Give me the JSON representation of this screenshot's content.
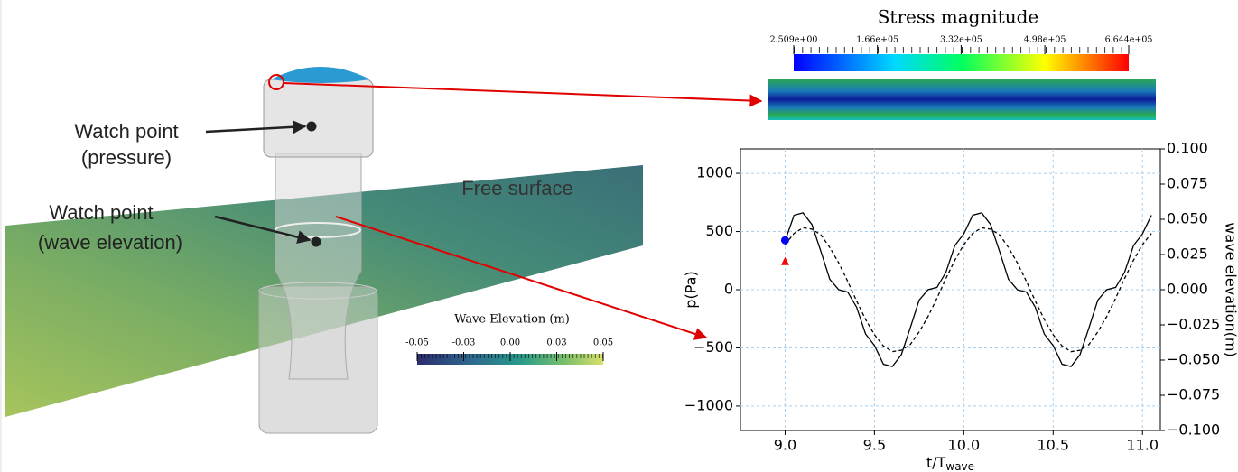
{
  "scene": {
    "pressure_label": [
      "Watch point",
      "(pressure)"
    ],
    "wave_label": [
      "Watch point",
      "(wave elevation)"
    ],
    "surface_label": "Free surface"
  },
  "wave_colorbar": {
    "title": "Wave Elevation (m)",
    "range": [
      -0.05,
      0.05
    ],
    "ticks": [
      -0.05,
      {
        "value": -0.025,
        "label": "-0.03"
      },
      {
        "value": 0,
        "label": "0.00"
      },
      {
        "value": 0.025,
        "label": "0.03"
      },
      0.05
    ]
  },
  "stress_colorbar": {
    "title": "Stress magnitude",
    "range": [
      2.509,
      664400
    ],
    "ticks": [
      {
        "value": 2.509,
        "label": "2.509e+00"
      },
      {
        "value": 166000,
        "label": "1.66e+05"
      },
      {
        "value": 332000,
        "label": "3.32e+05"
      },
      {
        "value": 498000,
        "label": "4.98e+05"
      },
      {
        "value": 664400,
        "label": "6.644e+05"
      }
    ]
  },
  "chart_data": {
    "type": "line",
    "x_label": "t/T",
    "x_label_subscript": "wave",
    "y_label": "p(Pa)",
    "y2_label": "wave elevation(m)",
    "x": [
      9.0,
      9.05,
      9.1,
      9.15,
      9.2,
      9.25,
      9.3,
      9.35,
      9.4,
      9.45,
      9.5,
      9.55,
      9.6,
      9.65,
      9.7,
      9.75,
      9.8,
      9.85,
      9.9,
      9.95,
      10.0,
      10.05,
      10.1,
      10.15,
      10.2,
      10.25,
      10.3,
      10.35,
      10.4,
      10.45,
      10.5,
      10.55,
      10.6,
      10.65,
      10.7,
      10.75,
      10.8,
      10.85,
      10.9,
      10.95,
      11.0,
      11.05
    ],
    "series": [
      {
        "color": "#000000",
        "line_style": "solid",
        "values": [
          420,
          640,
          660,
          560,
          330,
          90,
          0,
          -20,
          -150,
          -380,
          -480,
          -640,
          -660,
          -560,
          -330,
          -90,
          0,
          20,
          150,
          380,
          480,
          640,
          660,
          560,
          330,
          90,
          0,
          -20,
          -150,
          -380,
          -480,
          -640,
          -660,
          -560,
          -330,
          -90,
          0,
          20,
          150,
          380,
          480,
          640
        ]
      },
      {
        "color": "#000000",
        "line_style": "dashed",
        "axis": "y2",
        "values": [
          0.032,
          0.04,
          0.044,
          0.043,
          0.039,
          0.03,
          0.019,
          0.006,
          -0.008,
          -0.021,
          -0.032,
          -0.04,
          -0.044,
          -0.043,
          -0.039,
          -0.03,
          -0.019,
          -0.006,
          0.008,
          0.021,
          0.032,
          0.04,
          0.044,
          0.043,
          0.039,
          0.03,
          0.019,
          0.006,
          -0.008,
          -0.021,
          -0.032,
          -0.04,
          -0.044,
          -0.043,
          -0.039,
          -0.03,
          -0.019,
          -0.006,
          0.008,
          0.021,
          0.032,
          0.04
        ]
      }
    ],
    "marker_points": [
      {
        "x": 9.0,
        "y": 425,
        "color": "#0000ff",
        "shape": "circle"
      },
      {
        "x": 9.0,
        "y": 0.02,
        "axis": "y2",
        "color": "#ff0000",
        "shape": "triangle"
      }
    ],
    "xlim": [
      8.75,
      11.1
    ],
    "ylim": [
      -1210,
      1210
    ],
    "y2lim": [
      -0.1,
      0.1
    ],
    "xticks": [
      {
        "value": 9,
        "label": "9.0"
      },
      9.5,
      {
        "value": 10,
        "label": "10.0"
      },
      10.5,
      {
        "value": 11,
        "label": "11.0"
      }
    ],
    "yticks": [
      {
        "value": -1000,
        "label": "−1000"
      },
      {
        "value": -500,
        "label": "−500"
      },
      0,
      500,
      1000
    ],
    "y2ticks": [
      {
        "value": -0.1,
        "label": "−0.100"
      },
      {
        "value": -0.075,
        "label": "−0.075"
      },
      {
        "value": -0.05,
        "label": "−0.050"
      },
      {
        "value": -0.025,
        "label": "−0.025"
      },
      {
        "value": 0,
        "label": "0.000"
      },
      {
        "value": 0.025,
        "label": "0.025"
      },
      {
        "value": 0.05,
        "label": "0.050"
      },
      {
        "value": 0.075,
        "label": "0.075"
      },
      {
        "value": 0.1,
        "label": "0.100"
      }
    ],
    "grid": true,
    "grid_color": "#a8cfee"
  }
}
